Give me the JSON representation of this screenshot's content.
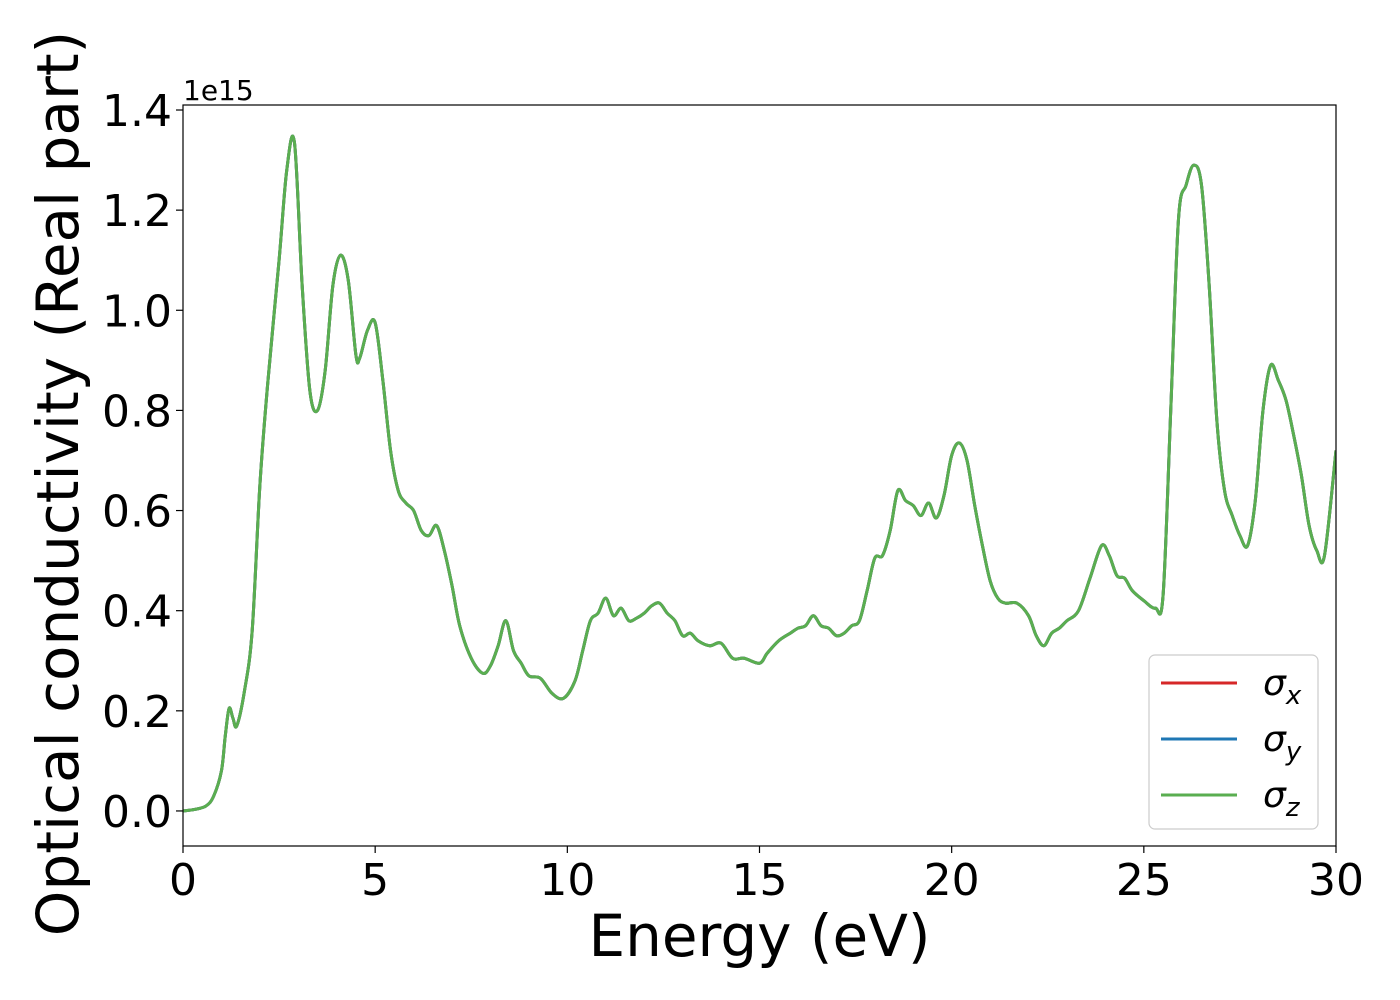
{
  "chart_data": {
    "type": "line",
    "xlabel": "Energy (eV)",
    "ylabel": "Optical conductivity (Real part)",
    "offset_label": "1e15",
    "y_scale_factor": 1000000000000000.0,
    "xlim": [
      0,
      30
    ],
    "ylim": [
      -0.07,
      1.41
    ],
    "xticks": [
      0,
      5,
      10,
      15,
      20,
      25,
      30
    ],
    "xtick_labels": [
      "0",
      "5",
      "10",
      "15",
      "20",
      "25",
      "30"
    ],
    "yticks": [
      0.0,
      0.2,
      0.4,
      0.6,
      0.8,
      1.0,
      1.2,
      1.4
    ],
    "ytick_labels": [
      "0.0",
      "0.2",
      "0.4",
      "0.6",
      "0.8",
      "1.0",
      "1.2",
      "1.4"
    ],
    "grid": false,
    "legend_position": "lower-right",
    "x": [
      0,
      0.3,
      0.6,
      0.8,
      1.0,
      1.1,
      1.2,
      1.3,
      1.4,
      1.6,
      1.8,
      2.0,
      2.2,
      2.5,
      2.7,
      2.9,
      3.1,
      3.3,
      3.5,
      3.7,
      3.9,
      4.1,
      4.3,
      4.5,
      4.6,
      4.8,
      5.0,
      5.2,
      5.4,
      5.6,
      5.8,
      6.0,
      6.2,
      6.4,
      6.6,
      6.8,
      7.0,
      7.2,
      7.5,
      7.8,
      8.0,
      8.2,
      8.4,
      8.6,
      8.8,
      9.0,
      9.3,
      9.6,
      9.9,
      10.2,
      10.4,
      10.6,
      10.8,
      11.0,
      11.2,
      11.4,
      11.6,
      11.8,
      12.0,
      12.2,
      12.4,
      12.6,
      12.8,
      13.0,
      13.2,
      13.4,
      13.7,
      14.0,
      14.3,
      14.6,
      15.0,
      15.2,
      15.5,
      15.8,
      16.0,
      16.2,
      16.4,
      16.6,
      16.8,
      17.0,
      17.2,
      17.4,
      17.6,
      17.8,
      18.0,
      18.2,
      18.4,
      18.6,
      18.8,
      19.0,
      19.2,
      19.4,
      19.6,
      19.8,
      20.0,
      20.2,
      20.4,
      20.6,
      20.8,
      21.0,
      21.2,
      21.4,
      21.7,
      22.0,
      22.2,
      22.4,
      22.6,
      22.8,
      23.0,
      23.3,
      23.6,
      23.9,
      24.1,
      24.3,
      24.5,
      24.7,
      25.0,
      25.3,
      25.5,
      25.7,
      25.9,
      26.1,
      26.3,
      26.5,
      26.7,
      26.9,
      27.1,
      27.3,
      27.5,
      27.7,
      27.9,
      28.1,
      28.3,
      28.5,
      28.7,
      28.9,
      29.1,
      29.3,
      29.5,
      29.7,
      30.0
    ],
    "series": [
      {
        "name": "σx",
        "color": "#d62728",
        "values": [
          0.0,
          0.003,
          0.01,
          0.03,
          0.08,
          0.15,
          0.205,
          0.185,
          0.17,
          0.24,
          0.36,
          0.65,
          0.85,
          1.1,
          1.28,
          1.335,
          1.05,
          0.84,
          0.8,
          0.88,
          1.05,
          1.11,
          1.06,
          0.91,
          0.905,
          0.96,
          0.975,
          0.86,
          0.72,
          0.64,
          0.615,
          0.6,
          0.56,
          0.55,
          0.57,
          0.52,
          0.45,
          0.37,
          0.305,
          0.275,
          0.29,
          0.33,
          0.38,
          0.32,
          0.295,
          0.27,
          0.265,
          0.235,
          0.225,
          0.26,
          0.32,
          0.38,
          0.395,
          0.425,
          0.39,
          0.405,
          0.38,
          0.385,
          0.395,
          0.41,
          0.415,
          0.395,
          0.38,
          0.35,
          0.355,
          0.34,
          0.33,
          0.335,
          0.305,
          0.305,
          0.295,
          0.315,
          0.34,
          0.355,
          0.365,
          0.37,
          0.39,
          0.37,
          0.365,
          0.35,
          0.355,
          0.37,
          0.38,
          0.44,
          0.505,
          0.51,
          0.56,
          0.64,
          0.62,
          0.61,
          0.59,
          0.615,
          0.585,
          0.63,
          0.71,
          0.735,
          0.7,
          0.61,
          0.53,
          0.46,
          0.425,
          0.415,
          0.415,
          0.39,
          0.35,
          0.33,
          0.355,
          0.365,
          0.38,
          0.4,
          0.465,
          0.53,
          0.51,
          0.47,
          0.465,
          0.44,
          0.42,
          0.405,
          0.43,
          0.8,
          1.18,
          1.25,
          1.29,
          1.25,
          1.05,
          0.78,
          0.64,
          0.59,
          0.55,
          0.53,
          0.62,
          0.8,
          0.89,
          0.86,
          0.82,
          0.75,
          0.67,
          0.57,
          0.52,
          0.51,
          0.72
        ]
      },
      {
        "name": "σy",
        "color": "#1f77b4",
        "values": [
          0.0,
          0.003,
          0.01,
          0.03,
          0.08,
          0.15,
          0.205,
          0.185,
          0.17,
          0.24,
          0.36,
          0.65,
          0.85,
          1.1,
          1.28,
          1.335,
          1.05,
          0.84,
          0.8,
          0.88,
          1.05,
          1.11,
          1.06,
          0.91,
          0.905,
          0.96,
          0.975,
          0.86,
          0.72,
          0.64,
          0.615,
          0.6,
          0.56,
          0.55,
          0.57,
          0.52,
          0.45,
          0.37,
          0.305,
          0.275,
          0.29,
          0.33,
          0.38,
          0.32,
          0.295,
          0.27,
          0.265,
          0.235,
          0.225,
          0.26,
          0.32,
          0.38,
          0.395,
          0.425,
          0.39,
          0.405,
          0.38,
          0.385,
          0.395,
          0.41,
          0.415,
          0.395,
          0.38,
          0.35,
          0.355,
          0.34,
          0.33,
          0.335,
          0.305,
          0.305,
          0.295,
          0.315,
          0.34,
          0.355,
          0.365,
          0.37,
          0.39,
          0.37,
          0.365,
          0.35,
          0.355,
          0.37,
          0.38,
          0.44,
          0.505,
          0.51,
          0.56,
          0.64,
          0.62,
          0.61,
          0.59,
          0.615,
          0.585,
          0.63,
          0.71,
          0.735,
          0.7,
          0.61,
          0.53,
          0.46,
          0.425,
          0.415,
          0.415,
          0.39,
          0.35,
          0.33,
          0.355,
          0.365,
          0.38,
          0.4,
          0.465,
          0.53,
          0.51,
          0.47,
          0.465,
          0.44,
          0.42,
          0.405,
          0.43,
          0.8,
          1.18,
          1.25,
          1.29,
          1.25,
          1.05,
          0.78,
          0.64,
          0.59,
          0.55,
          0.53,
          0.62,
          0.8,
          0.89,
          0.86,
          0.82,
          0.75,
          0.67,
          0.57,
          0.52,
          0.51,
          0.72
        ]
      },
      {
        "name": "σz",
        "color": "#5aae50",
        "values": [
          0.0,
          0.003,
          0.01,
          0.03,
          0.08,
          0.15,
          0.205,
          0.185,
          0.17,
          0.24,
          0.36,
          0.65,
          0.85,
          1.1,
          1.28,
          1.335,
          1.05,
          0.84,
          0.8,
          0.88,
          1.05,
          1.11,
          1.06,
          0.91,
          0.905,
          0.96,
          0.975,
          0.86,
          0.72,
          0.64,
          0.615,
          0.6,
          0.56,
          0.55,
          0.57,
          0.52,
          0.45,
          0.37,
          0.305,
          0.275,
          0.29,
          0.33,
          0.38,
          0.32,
          0.295,
          0.27,
          0.265,
          0.235,
          0.225,
          0.26,
          0.32,
          0.38,
          0.395,
          0.425,
          0.39,
          0.405,
          0.38,
          0.385,
          0.395,
          0.41,
          0.415,
          0.395,
          0.38,
          0.35,
          0.355,
          0.34,
          0.33,
          0.335,
          0.305,
          0.305,
          0.295,
          0.315,
          0.34,
          0.355,
          0.365,
          0.37,
          0.39,
          0.37,
          0.365,
          0.35,
          0.355,
          0.37,
          0.38,
          0.44,
          0.505,
          0.51,
          0.56,
          0.64,
          0.62,
          0.61,
          0.59,
          0.615,
          0.585,
          0.63,
          0.71,
          0.735,
          0.7,
          0.61,
          0.53,
          0.46,
          0.425,
          0.415,
          0.415,
          0.39,
          0.35,
          0.33,
          0.355,
          0.365,
          0.38,
          0.4,
          0.465,
          0.53,
          0.51,
          0.47,
          0.465,
          0.44,
          0.42,
          0.405,
          0.43,
          0.8,
          1.18,
          1.25,
          1.29,
          1.25,
          1.05,
          0.78,
          0.64,
          0.59,
          0.55,
          0.53,
          0.62,
          0.8,
          0.89,
          0.86,
          0.82,
          0.75,
          0.67,
          0.57,
          0.52,
          0.51,
          0.72
        ]
      }
    ],
    "legend": [
      {
        "symbol": "σ",
        "sub": "x",
        "color": "#d62728"
      },
      {
        "symbol": "σ",
        "sub": "y",
        "color": "#1f77b4"
      },
      {
        "symbol": "σ",
        "sub": "z",
        "color": "#5aae50"
      }
    ]
  }
}
